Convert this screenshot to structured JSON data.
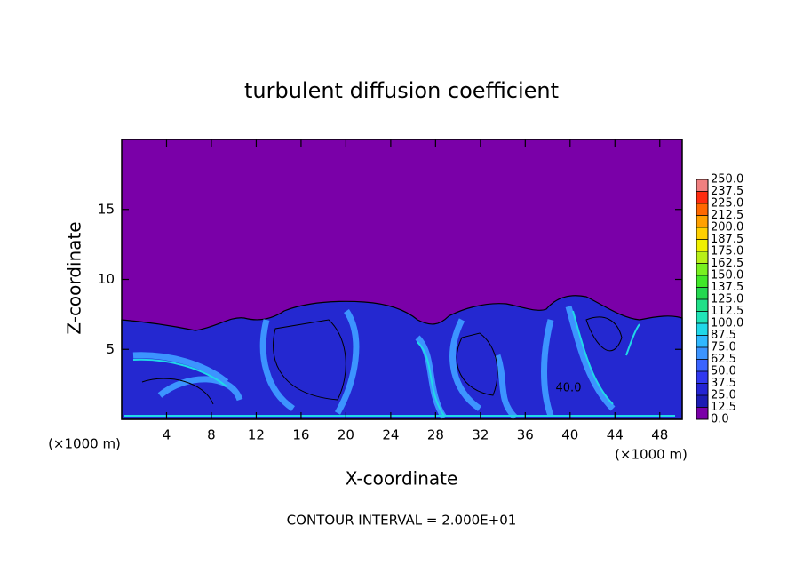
{
  "chart_data": {
    "type": "contour",
    "title": "turbulent diffusion coefficient",
    "xlabel": "X-coordinate",
    "ylabel": "Z-coordinate",
    "x_unit": "(×1000 m)",
    "y_unit": "(×1000 m)",
    "footer": "CONTOUR INTERVAL = 2.000E+01",
    "contour_label": "40.0",
    "xlim": [
      0,
      50
    ],
    "ylim": [
      0,
      20
    ],
    "xticks": [
      4,
      8,
      12,
      16,
      20,
      24,
      28,
      32,
      36,
      40,
      44,
      48
    ],
    "yticks": [
      5,
      10,
      15
    ],
    "clim": [
      0,
      250
    ],
    "clevels": [
      {
        "value": 0,
        "label": "0.0"
      },
      12.5,
      {
        "value": 25,
        "label": "25.0"
      },
      37.5,
      {
        "value": 50,
        "label": "50.0"
      },
      62.5,
      {
        "value": 75,
        "label": "75.0"
      },
      87.5,
      {
        "value": 100,
        "label": "100.0"
      },
      112.5,
      {
        "value": 125,
        "label": "125.0"
      },
      137.5,
      {
        "value": 150,
        "label": "150.0"
      },
      162.5,
      {
        "value": 175,
        "label": "175.0"
      },
      187.5,
      {
        "value": 200,
        "label": "200.0"
      },
      212.5,
      {
        "value": 225,
        "label": "225.0"
      },
      237.5,
      {
        "value": 250,
        "label": "250.0"
      }
    ],
    "colors": [
      "#7a00a8",
      "#1c1cb4",
      "#2424d4",
      "#3038f0",
      "#3a64ff",
      "#3c94ff",
      "#30b8ff",
      "#20d8e8",
      "#20e4b8",
      "#20e088",
      "#24d850",
      "#40e828",
      "#78f020",
      "#b8f018",
      "#f0f000",
      "#ffd000",
      "#ffa000",
      "#ff6800",
      "#ff2c10",
      "#f08080"
    ]
  }
}
